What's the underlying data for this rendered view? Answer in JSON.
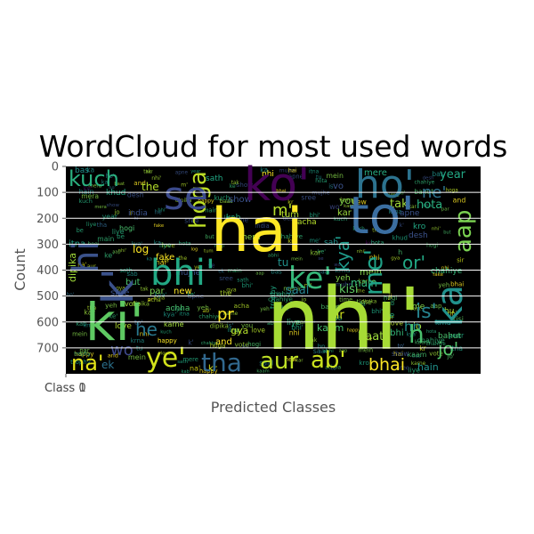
{
  "chart_data": {
    "type": "wordcloud",
    "title": "WordCloud for most used words",
    "xlabel": "Predicted Classes",
    "ylabel": "Count",
    "x_ticks": [
      "Class 0",
      "Class 1"
    ],
    "y_ticks": [
      0,
      100,
      200,
      300,
      400,
      500,
      600,
      700
    ],
    "ylim": [
      0,
      800
    ],
    "grid": true,
    "background": "#000000",
    "colormap": "viridis",
    "words": [
      {
        "text": "nhi'",
        "color": "#a6db35"
      },
      {
        "text": "hai",
        "color": "#fde725"
      },
      {
        "text": "ki'",
        "color": "#5ec962"
      },
      {
        "text": "to'",
        "color": "#3b6ea0"
      },
      {
        "text": "bhi'",
        "color": "#22a884"
      },
      {
        "text": "ko'",
        "color": "#440154"
      },
      {
        "text": "se",
        "color": "#3b4a8c"
      },
      {
        "text": "ho'",
        "color": "#2c728e"
      },
      {
        "text": "ke'",
        "color": "#35b779"
      },
      {
        "text": "k'",
        "color": "#3b528b"
      },
      {
        "text": "hi",
        "color": "#3b528b"
      },
      {
        "text": "ka",
        "color": "#21918c"
      },
      {
        "text": "aap",
        "color": "#7ad151"
      },
      {
        "text": "ye'",
        "color": "#d2e21b"
      },
      {
        "text": "aur",
        "color": "#bddf26"
      },
      {
        "text": "ab'",
        "color": "#cbe11e"
      },
      {
        "text": "tha",
        "color": "#31688e"
      },
      {
        "text": "bhai",
        "color": "#fde725"
      },
      {
        "text": "na'",
        "color": "#e2e418"
      },
      {
        "text": "kuch",
        "color": "#2ab07f"
      },
      {
        "text": "hoga",
        "color": "#bddf26"
      },
      {
        "text": "h",
        "color": "#4ac16d"
      },
      {
        "text": "jo'",
        "color": "#52c569"
      },
      {
        "text": "kya'",
        "color": "#1f9a8a"
      },
      {
        "text": "me'",
        "color": "#1fa187"
      },
      {
        "text": "he",
        "color": "#2a788e"
      },
      {
        "text": "wo",
        "color": "#3e4989"
      },
      {
        "text": "is'",
        "color": "#26828e"
      },
      {
        "text": "or'",
        "color": "#22a884"
      },
      {
        "text": "ne'",
        "color": "#2c728e"
      },
      {
        "text": "m'",
        "color": "#b5de2b"
      },
      {
        "text": "hn",
        "color": "#21918c"
      },
      {
        "text": "pr",
        "color": "#fde725"
      },
      {
        "text": "main",
        "color": "#35b779"
      },
      {
        "text": "kisi",
        "color": "#5ec962"
      },
      {
        "text": "log",
        "color": "#fde725"
      },
      {
        "text": "tum",
        "color": "#b5de2b"
      },
      {
        "text": "tak",
        "color": "#a0da39"
      },
      {
        "text": "hota",
        "color": "#2ab07f"
      },
      {
        "text": "year",
        "color": "#22a884"
      },
      {
        "text": "mere",
        "color": "#27ad81"
      },
      {
        "text": "saal",
        "color": "#26828e"
      },
      {
        "text": "dipika",
        "color": "#a0da39"
      },
      {
        "text": "sree",
        "color": "#3b528b"
      },
      {
        "text": "sir",
        "color": "#d2e21b"
      },
      {
        "text": "you",
        "color": "#84d44b"
      },
      {
        "text": "baat",
        "color": "#9bd93c"
      },
      {
        "text": "hain",
        "color": "#21918c"
      },
      {
        "text": "jo",
        "color": "#a0da39"
      },
      {
        "text": "ek",
        "color": "#2c728e"
      },
      {
        "text": "vo",
        "color": "#3b528b"
      },
      {
        "text": "gya",
        "color": "#b5de2b"
      },
      {
        "text": "kaam",
        "color": "#4ac16d"
      },
      {
        "text": "abhi",
        "color": "#35b779"
      },
      {
        "text": "ji",
        "color": "#e5e419"
      },
      {
        "text": "but",
        "color": "#4ac16d"
      },
      {
        "text": "tu",
        "color": "#21918c"
      },
      {
        "text": "par",
        "color": "#7ad151"
      },
      {
        "text": "new",
        "color": "#fde725"
      },
      {
        "text": "mein",
        "color": "#84d44b"
      },
      {
        "text": "bas",
        "color": "#21918c"
      },
      {
        "text": "sath",
        "color": "#22a884"
      },
      {
        "text": "show",
        "color": "#3b528b"
      },
      {
        "text": "fake",
        "color": "#fde725"
      },
      {
        "text": "kar",
        "color": "#9bd93c"
      },
      {
        "text": "itna",
        "color": "#1fa187"
      },
      {
        "text": "the",
        "color": "#b5de2b"
      },
      {
        "text": "kro",
        "color": "#22a884"
      },
      {
        "text": "desh",
        "color": "#3b528b"
      },
      {
        "text": "chahiye",
        "color": "#35b779"
      },
      {
        "text": "yeh",
        "color": "#84d44b"
      },
      {
        "text": "be",
        "color": "#2ab07f"
      },
      {
        "text": "apne",
        "color": "#3b528b"
      },
      {
        "text": "nhi",
        "color": "#fde725"
      },
      {
        "text": "hu",
        "color": "#a0da39"
      },
      {
        "text": "bahut",
        "color": "#4ac16d"
      },
      {
        "text": "and",
        "color": "#fde725"
      },
      {
        "text": "love",
        "color": "#b5de2b"
      },
      {
        "text": "vote",
        "color": "#a0da39"
      },
      {
        "text": "happy",
        "color": "#fde725"
      },
      {
        "text": "mujhe",
        "color": "#3b528b"
      },
      {
        "text": "achha",
        "color": "#4ac16d"
      },
      {
        "text": "krna",
        "color": "#21918c"
      },
      {
        "text": "liye",
        "color": "#2ab07f"
      },
      {
        "text": "kr",
        "color": "#d2e21b"
      },
      {
        "text": "khud",
        "color": "#22a884"
      },
      {
        "text": "hogi",
        "color": "#4ac16d"
      },
      {
        "text": "time",
        "color": "#84d44b"
      },
      {
        "text": "trophy",
        "color": "#22a884"
      },
      {
        "text": "karne",
        "color": "#a0da39"
      },
      {
        "text": "mera",
        "color": "#84d44b"
      },
      {
        "text": "kab",
        "color": "#2ab07f"
      },
      {
        "text": "sab",
        "color": "#21918c"
      },
      {
        "text": "india",
        "color": "#3b528b"
      },
      {
        "text": "acha",
        "color": "#b5de2b"
      }
    ]
  }
}
